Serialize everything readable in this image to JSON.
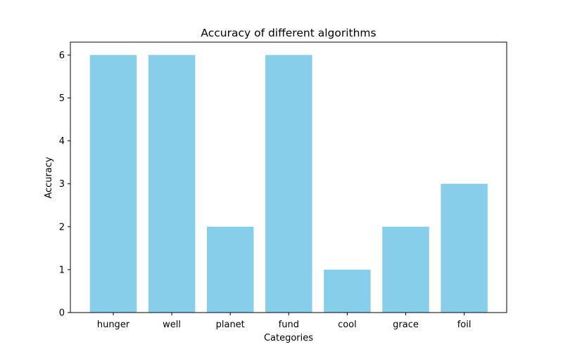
{
  "chart_data": {
    "type": "bar",
    "title": "Accuracy of different algorithms",
    "xlabel": "Categories",
    "ylabel": "Accuracy",
    "categories": [
      "hunger",
      "well",
      "planet",
      "fund",
      "cool",
      "grace",
      "foil"
    ],
    "values": [
      6,
      6,
      2,
      6,
      1,
      2,
      3
    ],
    "ylim": [
      0,
      6.3
    ],
    "yticks": [
      0,
      1,
      2,
      3,
      4,
      5,
      6
    ],
    "bar_color": "#87ceeb",
    "grid": false,
    "legend": "none"
  }
}
